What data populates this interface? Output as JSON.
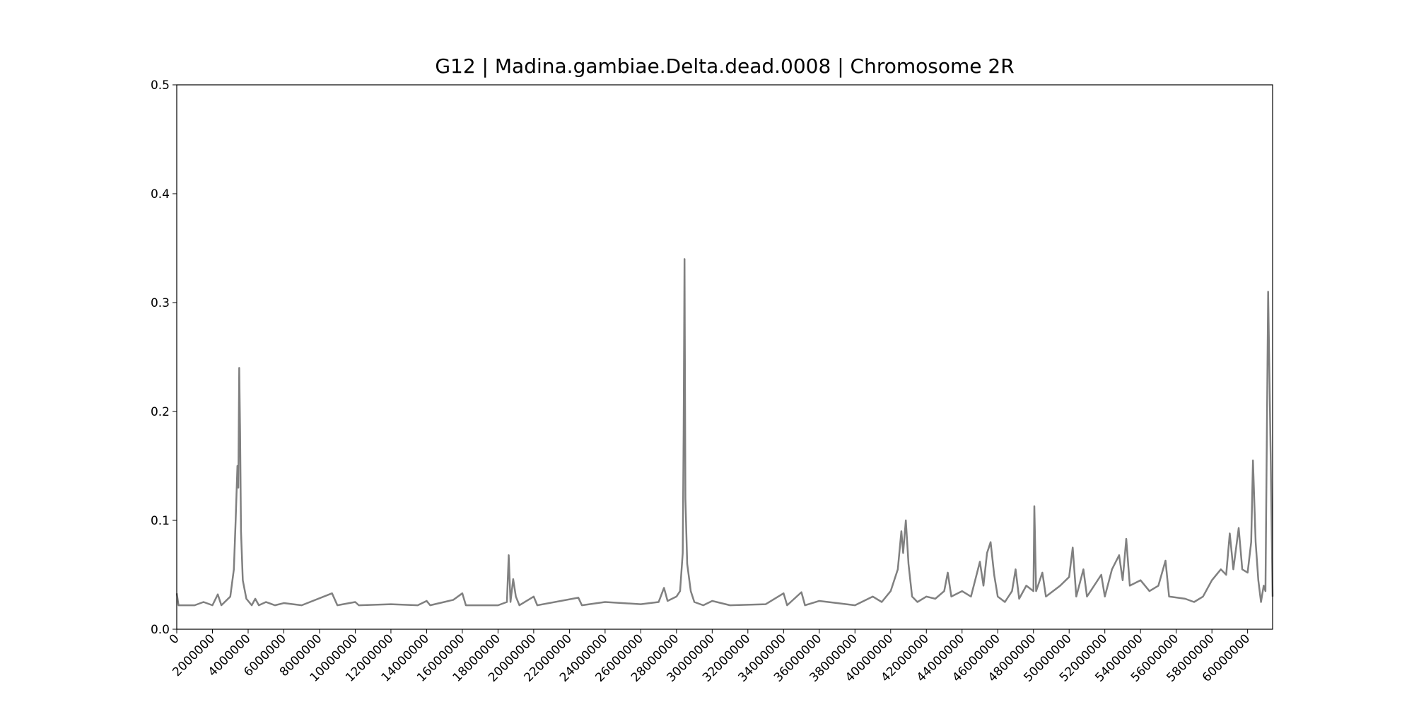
{
  "chart_data": {
    "type": "line",
    "title": "G12 | Madina.gambiae.Delta.dead.0008 | Chromosome 2R",
    "xlim": [
      0,
      61400000
    ],
    "ylim": [
      0,
      0.5
    ],
    "xticks": [
      0,
      2000000,
      4000000,
      6000000,
      8000000,
      10000000,
      12000000,
      14000000,
      16000000,
      18000000,
      20000000,
      22000000,
      24000000,
      26000000,
      28000000,
      30000000,
      32000000,
      34000000,
      36000000,
      38000000,
      40000000,
      42000000,
      44000000,
      46000000,
      48000000,
      50000000,
      52000000,
      54000000,
      56000000,
      58000000,
      60000000
    ],
    "yticks": [
      {
        "value": 0,
        "label": "0.0"
      },
      0.1,
      0.2,
      0.3,
      0.4,
      0.5
    ],
    "grid": false,
    "series": [
      {
        "color": "#808080",
        "x": [
          0,
          100000,
          1000000,
          1500000,
          2000000,
          2300000,
          2500000,
          3000000,
          3200000,
          3300000,
          3400000,
          3450000,
          3500000,
          3550000,
          3600000,
          3700000,
          3900000,
          4200000,
          4400000,
          4600000,
          5000000,
          5500000,
          6000000,
          7000000,
          8700000,
          9000000,
          10000000,
          10200000,
          12000000,
          13500000,
          14000000,
          14200000,
          15500000,
          16000000,
          16200000,
          18000000,
          18500000,
          18600000,
          18700000,
          18850000,
          19000000,
          19200000,
          20000000,
          20200000,
          22500000,
          22700000,
          24000000,
          26000000,
          27000000,
          27300000,
          27500000,
          28000000,
          28200000,
          28350000,
          28400000,
          28450000,
          28500000,
          28600000,
          28800000,
          29000000,
          29500000,
          30000000,
          31000000,
          33000000,
          34000000,
          34200000,
          35000000,
          35200000,
          36000000,
          37000000,
          38000000,
          39000000,
          39500000,
          40000000,
          40400000,
          40600000,
          40700000,
          40850000,
          41000000,
          41200000,
          41500000,
          42000000,
          42500000,
          43000000,
          43200000,
          43400000,
          44000000,
          44500000,
          45000000,
          45200000,
          45400000,
          45600000,
          45800000,
          46000000,
          46400000,
          46800000,
          47000000,
          47200000,
          47600000,
          48000000,
          48050000,
          48150000,
          48500000,
          48700000,
          49500000,
          50000000,
          50200000,
          50400000,
          50800000,
          51000000,
          51800000,
          52000000,
          52400000,
          52800000,
          53000000,
          53200000,
          53400000,
          54000000,
          54500000,
          55000000,
          55400000,
          55600000,
          56500000,
          57000000,
          57500000,
          58000000,
          58500000,
          58800000,
          59000000,
          59200000,
          59500000,
          59700000,
          60000000,
          60200000,
          60300000,
          60450000,
          60600000,
          60750000,
          60900000,
          61000000,
          61150000,
          61300000,
          61400000
        ],
        "values": [
          0.033,
          0.022,
          0.022,
          0.025,
          0.022,
          0.032,
          0.022,
          0.03,
          0.055,
          0.1,
          0.15,
          0.13,
          0.24,
          0.18,
          0.09,
          0.045,
          0.028,
          0.022,
          0.028,
          0.022,
          0.025,
          0.022,
          0.024,
          0.022,
          0.033,
          0.022,
          0.025,
          0.022,
          0.023,
          0.022,
          0.026,
          0.022,
          0.027,
          0.033,
          0.022,
          0.022,
          0.025,
          0.068,
          0.025,
          0.046,
          0.03,
          0.022,
          0.03,
          0.022,
          0.029,
          0.022,
          0.025,
          0.023,
          0.025,
          0.038,
          0.026,
          0.03,
          0.035,
          0.07,
          0.18,
          0.34,
          0.12,
          0.06,
          0.035,
          0.025,
          0.022,
          0.026,
          0.022,
          0.023,
          0.033,
          0.022,
          0.034,
          0.022,
          0.026,
          0.024,
          0.022,
          0.03,
          0.025,
          0.035,
          0.055,
          0.09,
          0.07,
          0.1,
          0.06,
          0.03,
          0.025,
          0.03,
          0.028,
          0.035,
          0.052,
          0.03,
          0.035,
          0.03,
          0.062,
          0.04,
          0.07,
          0.08,
          0.05,
          0.03,
          0.025,
          0.035,
          0.055,
          0.028,
          0.04,
          0.035,
          0.113,
          0.035,
          0.052,
          0.03,
          0.04,
          0.048,
          0.075,
          0.03,
          0.055,
          0.03,
          0.05,
          0.03,
          0.055,
          0.068,
          0.045,
          0.083,
          0.04,
          0.045,
          0.035,
          0.04,
          0.063,
          0.03,
          0.028,
          0.025,
          0.03,
          0.045,
          0.055,
          0.05,
          0.088,
          0.055,
          0.093,
          0.055,
          0.052,
          0.08,
          0.155,
          0.08,
          0.045,
          0.025,
          0.04,
          0.035,
          0.31,
          0.15,
          0.03
        ]
      }
    ]
  }
}
